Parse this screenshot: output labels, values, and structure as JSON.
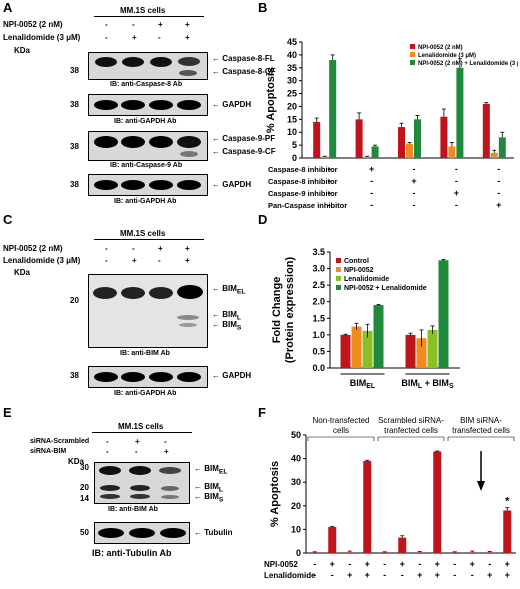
{
  "panels": {
    "A": "A",
    "B": "B",
    "C": "C",
    "D": "D",
    "E": "E",
    "F": "F"
  },
  "panel_a": {
    "cell_line": "MM.1S cells",
    "row1": "NPI-0052 (2 nM)",
    "row2": "Lenalidomide (3 μM)",
    "kda": "KDa",
    "row1_signs": [
      "-",
      "-",
      "+",
      "+"
    ],
    "row2_signs": [
      "-",
      "+",
      "-",
      "+"
    ],
    "mw": "38",
    "casp8_fl": "Caspase-8-FL",
    "casp8_cf": "Caspase-8-CF",
    "ib_casp8": "IB: anti-Caspase-8 Ab",
    "gapdh": "GAPDH",
    "ib_gapdh": "IB: anti-GAPDH Ab",
    "casp9_pf": "Caspase-9-PF",
    "casp9_cf": "Caspase-9-CF",
    "ib_casp9": "IB: anti-Caspase-9 Ab"
  },
  "panel_c": {
    "cell_line": "MM.1S cells",
    "row1": "NPI-0052 (2 nM)",
    "row2": "Lenalidomide (3 μM)",
    "kda": "KDa",
    "row1_signs": [
      "-",
      "-",
      "+",
      "+"
    ],
    "row2_signs": [
      "-",
      "+",
      "-",
      "+"
    ],
    "mw20": "20",
    "mw38": "38",
    "bim": "BIM",
    "el": "EL",
    "l": "L",
    "s": "S",
    "ib_bim": "IB: anti-BIM Ab",
    "gapdh": "GAPDH",
    "ib_gapdh": "IB: anti-GAPDH Ab"
  },
  "panel_e": {
    "cell_line": "MM.1S cells",
    "row1": "siRNA-Scrambled",
    "row2": "siRNA-BIM",
    "kda": "KDa",
    "row1_signs": [
      "-",
      "+",
      "-"
    ],
    "row2_signs": [
      "-",
      "-",
      "+"
    ],
    "mw30": "30",
    "mw20": "20",
    "mw14": "14",
    "mw50": "50",
    "bim": "BIM",
    "el": "EL",
    "l": "L",
    "s": "S",
    "ib_bim": "IB: anti-BIM Ab",
    "tubulin": "Tubulin",
    "ib_tubulin": "IB: anti-Tubulin Ab"
  },
  "chart_data": [
    {
      "panel": "B",
      "type": "bar",
      "ylabel": "% Apoptosis",
      "ylim": [
        0,
        45
      ],
      "yticks": [
        0,
        5,
        10,
        15,
        20,
        25,
        30,
        35,
        40,
        45
      ],
      "legend_position": "top-right",
      "series": [
        {
          "name": "NPI-0052 (2 nM)",
          "color": "#c0141c",
          "values": [
            14,
            15,
            12,
            16,
            21
          ]
        },
        {
          "name": "Lenalidomide (3 μM)",
          "color": "#f28a1e",
          "values": [
            0.5,
            0.5,
            5.5,
            4.5,
            2
          ]
        },
        {
          "name": "NPI-0052 (2 nM) + Lenalidomide (3 μM)",
          "color": "#1f8a3c",
          "values": [
            38,
            4.5,
            15,
            35,
            8
          ]
        }
      ],
      "errors": [
        [
          1.5,
          2.5,
          1.5,
          3,
          0.5
        ],
        [
          0.2,
          0.2,
          0.5,
          1.5,
          1
        ],
        [
          2,
          0.5,
          1.5,
          3.5,
          2
        ]
      ],
      "inhibitor_rows": [
        {
          "label": "Caspase-8 inhibitor",
          "signs": [
            "-",
            "+",
            "-",
            "-",
            "-"
          ]
        },
        {
          "label": "Caspase-8 inhibitor",
          "signs": [
            "-",
            "-",
            "+",
            "-",
            "-"
          ]
        },
        {
          "label": "Caspase-9 inhibitor",
          "signs": [
            "-",
            "-",
            "-",
            "+",
            "-"
          ]
        },
        {
          "label": "Pan-Caspase inhibitor",
          "signs": [
            "-",
            "-",
            "-",
            "-",
            "+"
          ]
        }
      ]
    },
    {
      "panel": "D",
      "type": "bar",
      "ylabel": "Fold Change\n(Protein expression)",
      "ylim": [
        0,
        3.5
      ],
      "yticks": [
        "0.0",
        "0.5",
        "1.0",
        "1.5",
        "2.0",
        "2.5",
        "3.0",
        "3.5"
      ],
      "legend_position": "top-left",
      "groups": [
        {
          "main": "BIM",
          "sub": "EL"
        },
        {
          "main": "BIM",
          "sub": "L",
          "main2": " + BIM",
          "sub2": "S"
        }
      ],
      "series": [
        {
          "name": "Control",
          "color": "#c0141c",
          "values": [
            1.0,
            1.0
          ]
        },
        {
          "name": "NPI-0052",
          "color": "#f28a1e",
          "values": [
            1.25,
            0.9
          ]
        },
        {
          "name": "Lenalidomide",
          "color": "#8cbf26",
          "values": [
            1.12,
            1.15
          ]
        },
        {
          "name": "NPI-0052 + Lenalidomide",
          "color": "#1f8a3c",
          "values": [
            1.9,
            3.25
          ]
        }
      ],
      "errors": [
        [
          0.02,
          0.05
        ],
        [
          0.1,
          0.25
        ],
        [
          0.2,
          0.12
        ],
        [
          0.02,
          0.02
        ]
      ]
    },
    {
      "panel": "F",
      "type": "bar",
      "ylabel": "% Apoptosis",
      "ylim": [
        0,
        50
      ],
      "yticks": [
        0,
        10,
        20,
        30,
        40,
        50
      ],
      "color": "#c0141c",
      "values": [
        0.3,
        11,
        0.3,
        39,
        0.3,
        6.5,
        0.3,
        43,
        0.3,
        0.3,
        0.3,
        18
      ],
      "errors": [
        0.2,
        0.3,
        0.5,
        0.3,
        0.2,
        0.8,
        0.3,
        0.2,
        0.2,
        0.5,
        0.3,
        1.2
      ],
      "group_labels": [
        "Non-transfected\ncells",
        "Scrambled siRNA-\ntranfected cells",
        "BIM siRNA-\ntransfected cells"
      ],
      "star": "*",
      "row1": "NPI-0052",
      "row2": "Lenalidomide",
      "row1_signs": [
        "-",
        "+",
        "-",
        "+",
        "-",
        "+",
        "-",
        "+",
        "-",
        "+",
        "-",
        "+"
      ],
      "row2_signs": [
        "-",
        "-",
        "+",
        "+",
        "-",
        "-",
        "+",
        "+",
        "-",
        "-",
        "+",
        "+"
      ]
    }
  ]
}
